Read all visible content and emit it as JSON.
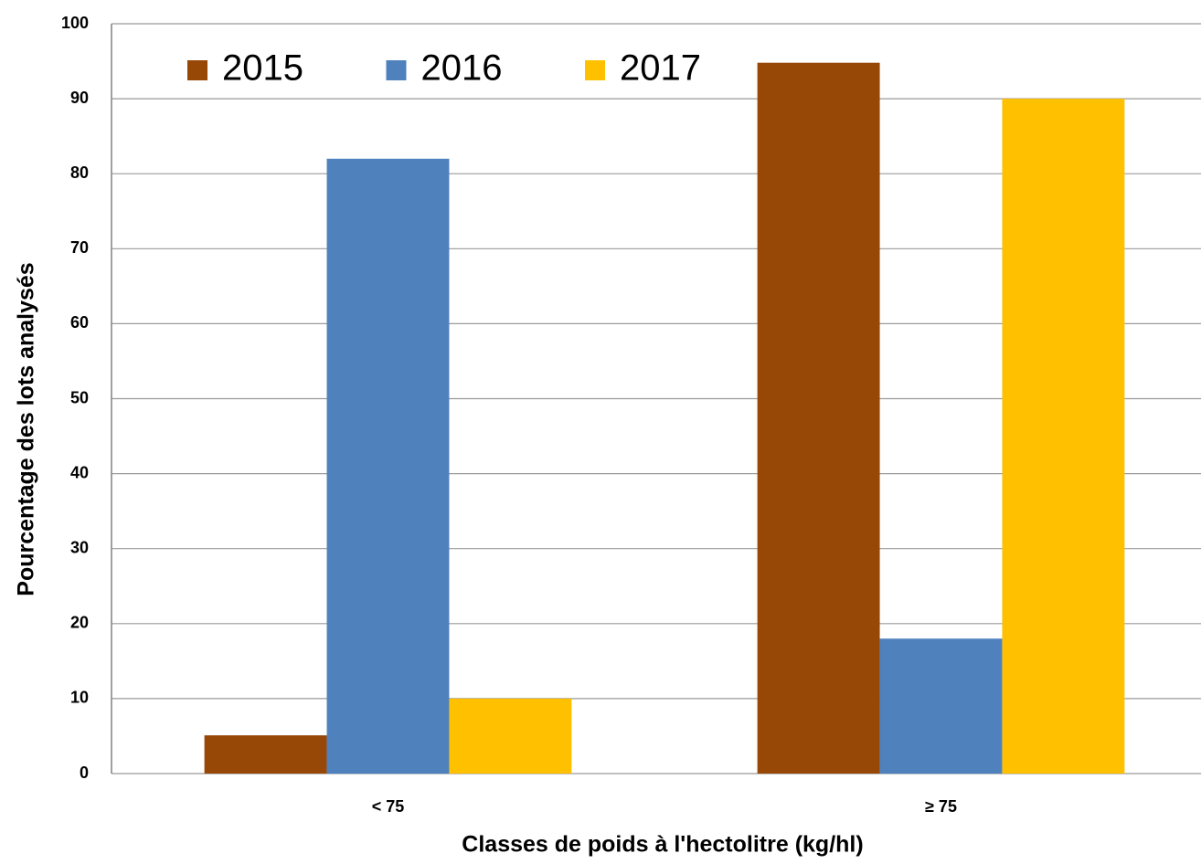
{
  "chart_data": {
    "type": "bar",
    "xlabel": "Classes de poids à l'hectolitre (kg/hl)",
    "ylabel": "Pourcentage des lots analysés",
    "categories": [
      "< 75",
      "≥ 75"
    ],
    "series": [
      {
        "name": "2015",
        "color": "#974706",
        "values": [
          5.1,
          94.8
        ]
      },
      {
        "name": "2016",
        "color": "#4f81bd",
        "values": [
          82,
          18
        ]
      },
      {
        "name": "2017",
        "color": "#ffc000",
        "values": [
          10,
          90
        ]
      }
    ],
    "ylim": [
      0,
      100
    ],
    "yticks": [
      0,
      10,
      20,
      30,
      40,
      50,
      60,
      70,
      80,
      90,
      100
    ],
    "grid": true,
    "legend": "top"
  }
}
